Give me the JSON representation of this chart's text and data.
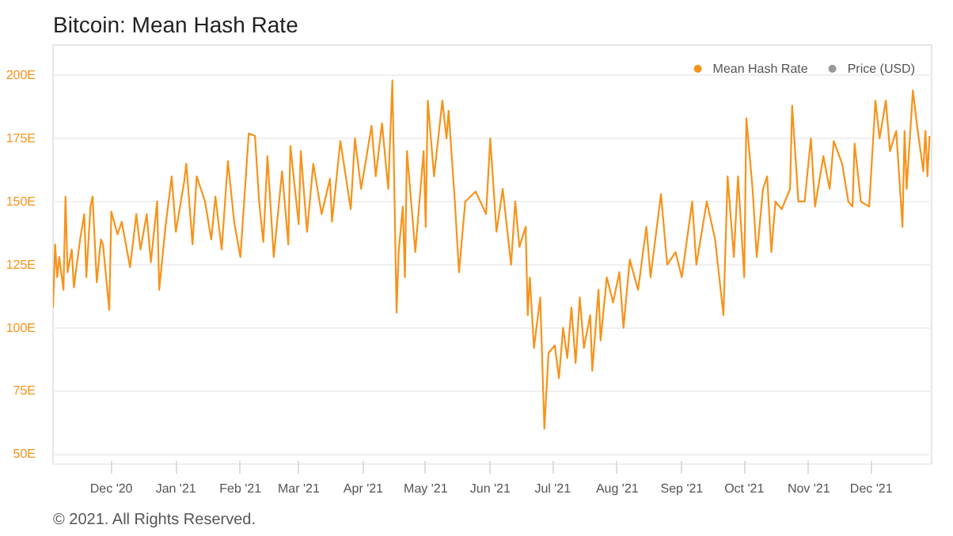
{
  "chart_data": {
    "type": "line",
    "title": "Bitcoin: Mean Hash Rate",
    "annotations": [
      "© 2021. All Rights Reserved."
    ],
    "legend": "top right",
    "grid": "y",
    "marker": "none",
    "line_style": "solid",
    "xlim": [
      "2020-11-03",
      "2021-12-30"
    ],
    "ylim": [
      46,
      212
    ],
    "xticks": [
      {
        "value": "2020-12-01",
        "label": "Dec '20"
      },
      {
        "value": "2021-01-01",
        "label": "Jan '21"
      },
      {
        "value": "2021-02-01",
        "label": "Feb '21"
      },
      {
        "value": "2021-03-01",
        "label": "Mar '21"
      },
      {
        "value": "2021-04-01",
        "label": "Apr '21"
      },
      {
        "value": "2021-05-01",
        "label": "May '21"
      },
      {
        "value": "2021-06-01",
        "label": "Jun '21"
      },
      {
        "value": "2021-07-01",
        "label": "Jul '21"
      },
      {
        "value": "2021-08-01",
        "label": "Aug '21"
      },
      {
        "value": "2021-09-01",
        "label": "Sep '21"
      },
      {
        "value": "2021-10-01",
        "label": "Oct '21"
      },
      {
        "value": "2021-11-01",
        "label": "Nov '21"
      },
      {
        "value": "2021-12-01",
        "label": "Dec '21"
      }
    ],
    "yticks": [
      {
        "value": 50,
        "label": "50E"
      },
      {
        "value": 75,
        "label": "75E"
      },
      {
        "value": 100,
        "label": "100E"
      },
      {
        "value": 125,
        "label": "125E"
      },
      {
        "value": 150,
        "label": "150E"
      },
      {
        "value": 175,
        "label": "175E"
      },
      {
        "value": 200,
        "label": "200E"
      }
    ],
    "x": [
      "2020-11-03",
      "2020-11-04",
      "2020-11-05",
      "2020-11-06",
      "2020-11-08",
      "2020-11-09",
      "2020-11-10",
      "2020-11-12",
      "2020-11-13",
      "2020-11-16",
      "2020-11-18",
      "2020-11-19",
      "2020-11-21",
      "2020-11-22",
      "2020-11-24",
      "2020-11-26",
      "2020-11-27",
      "2020-11-30",
      "2020-12-01",
      "2020-12-04",
      "2020-12-06",
      "2020-12-10",
      "2020-12-13",
      "2020-12-15",
      "2020-12-18",
      "2020-12-20",
      "2020-12-23",
      "2020-12-24",
      "2020-12-27",
      "2020-12-30",
      "2021-01-01",
      "2021-01-05",
      "2021-01-06",
      "2021-01-09",
      "2021-01-11",
      "2021-01-15",
      "2021-01-18",
      "2021-01-20",
      "2021-01-23",
      "2021-01-26",
      "2021-01-29",
      "2021-02-01",
      "2021-02-05",
      "2021-02-08",
      "2021-02-10",
      "2021-02-12",
      "2021-02-14",
      "2021-02-17",
      "2021-02-21",
      "2021-02-24",
      "2021-02-25",
      "2021-03-01",
      "2021-03-02",
      "2021-03-05",
      "2021-03-08",
      "2021-03-12",
      "2021-03-16",
      "2021-03-17",
      "2021-03-21",
      "2021-03-26",
      "2021-03-28",
      "2021-03-31",
      "2021-04-05",
      "2021-04-07",
      "2021-04-10",
      "2021-04-13",
      "2021-04-15",
      "2021-04-17",
      "2021-04-18",
      "2021-04-20",
      "2021-04-21",
      "2021-04-22",
      "2021-04-26",
      "2021-04-30",
      "2021-05-01",
      "2021-05-02",
      "2021-05-05",
      "2021-05-09",
      "2021-05-11",
      "2021-05-12",
      "2021-05-15",
      "2021-05-17",
      "2021-05-20",
      "2021-05-25",
      "2021-05-30",
      "2021-06-01",
      "2021-06-04",
      "2021-06-07",
      "2021-06-11",
      "2021-06-13",
      "2021-06-15",
      "2021-06-18",
      "2021-06-19",
      "2021-06-20",
      "2021-06-22",
      "2021-06-25",
      "2021-06-27",
      "2021-06-29",
      "2021-07-02",
      "2021-07-04",
      "2021-07-06",
      "2021-07-08",
      "2021-07-10",
      "2021-07-12",
      "2021-07-14",
      "2021-07-16",
      "2021-07-19",
      "2021-07-20",
      "2021-07-23",
      "2021-07-24",
      "2021-07-27",
      "2021-07-30",
      "2021-08-02",
      "2021-08-04",
      "2021-08-07",
      "2021-08-11",
      "2021-08-15",
      "2021-08-17",
      "2021-08-22",
      "2021-08-25",
      "2021-08-29",
      "2021-09-01",
      "2021-09-06",
      "2021-09-08",
      "2021-09-13",
      "2021-09-17",
      "2021-09-21",
      "2021-09-23",
      "2021-09-26",
      "2021-09-28",
      "2021-10-01",
      "2021-10-02",
      "2021-10-05",
      "2021-10-07",
      "2021-10-10",
      "2021-10-12",
      "2021-10-14",
      "2021-10-16",
      "2021-10-19",
      "2021-10-23",
      "2021-10-24",
      "2021-10-27",
      "2021-10-30",
      "2021-11-02",
      "2021-11-04",
      "2021-11-08",
      "2021-11-11",
      "2021-11-13",
      "2021-11-17",
      "2021-11-20",
      "2021-11-22",
      "2021-11-23",
      "2021-11-26",
      "2021-11-30",
      "2021-12-03",
      "2021-12-05",
      "2021-12-08",
      "2021-12-10",
      "2021-12-13",
      "2021-12-16",
      "2021-12-17",
      "2021-12-18",
      "2021-12-21",
      "2021-12-23",
      "2021-12-26",
      "2021-12-27",
      "2021-12-28",
      "2021-12-29"
    ],
    "series": [
      {
        "name": "Mean Hash Rate",
        "color": "#f7931a",
        "values": [
          108,
          133,
          120,
          128,
          115,
          152,
          122,
          131,
          116,
          135,
          145,
          120,
          148,
          152,
          118,
          135,
          133,
          107,
          146,
          137,
          142,
          124,
          145,
          131,
          145,
          126,
          150,
          115,
          140,
          160,
          138,
          158,
          165,
          133,
          160,
          150,
          135,
          152,
          131,
          166,
          142,
          128,
          177,
          176,
          150,
          134,
          168,
          128,
          162,
          133,
          172,
          141,
          170,
          138,
          165,
          145,
          159,
          142,
          174,
          147,
          175,
          155,
          180,
          160,
          181,
          155,
          198,
          106,
          130,
          148,
          120,
          170,
          130,
          170,
          140,
          190,
          160,
          190,
          175,
          186,
          150,
          122,
          150,
          154,
          145,
          175,
          138,
          155,
          125,
          150,
          132,
          140,
          105,
          120,
          92,
          112,
          60,
          90,
          93,
          80,
          100,
          88,
          108,
          86,
          112,
          92,
          105,
          83,
          115,
          95,
          120,
          110,
          122,
          100,
          127,
          115,
          140,
          120,
          153,
          125,
          130,
          120,
          150,
          125,
          150,
          135,
          105,
          160,
          128,
          160,
          120,
          183,
          155,
          128,
          155,
          160,
          130,
          150,
          147,
          155,
          188,
          150,
          150,
          175,
          148,
          168,
          155,
          174,
          165,
          150,
          148,
          173,
          150,
          148,
          190,
          175,
          190,
          170,
          178,
          140,
          178,
          155,
          194,
          180,
          162,
          178,
          160,
          176
        ]
      },
      {
        "name": "Price (USD)",
        "color": "#999999",
        "values": [
          null,
          null,
          null,
          null,
          null,
          null,
          null,
          null,
          null,
          null,
          null,
          null,
          null,
          null,
          null,
          null,
          null,
          null,
          null,
          null,
          null,
          null,
          null,
          null,
          null,
          null,
          null,
          null,
          null,
          null,
          null,
          null,
          null,
          null,
          null,
          null,
          null,
          null,
          null,
          null,
          null,
          null,
          null,
          null,
          null,
          null,
          null,
          null,
          null,
          null,
          null,
          null,
          null,
          null,
          null,
          null,
          null,
          null,
          null,
          null,
          null,
          null,
          null,
          null,
          null,
          null,
          null,
          null,
          null,
          null,
          null,
          null,
          null,
          null,
          null,
          null,
          null,
          null,
          null,
          null,
          null,
          null,
          null,
          null,
          null,
          null,
          null,
          null,
          null,
          null,
          null,
          null,
          null,
          null,
          null,
          null,
          null,
          null,
          null,
          null,
          null,
          null,
          null,
          null,
          null,
          null,
          null,
          null,
          null,
          null,
          null,
          null,
          null,
          null,
          null,
          null,
          null,
          null,
          null,
          null,
          null,
          null,
          null,
          null,
          null,
          null,
          null,
          null,
          null,
          null,
          null,
          null,
          null,
          null,
          null,
          null,
          null,
          null,
          null,
          null,
          null,
          null,
          null,
          null,
          null,
          null,
          null,
          null,
          null,
          null,
          null,
          null,
          null,
          null,
          null,
          null,
          null,
          null,
          null,
          null,
          null,
          null,
          null,
          null,
          null,
          null,
          null,
          null
        ]
      }
    ]
  }
}
